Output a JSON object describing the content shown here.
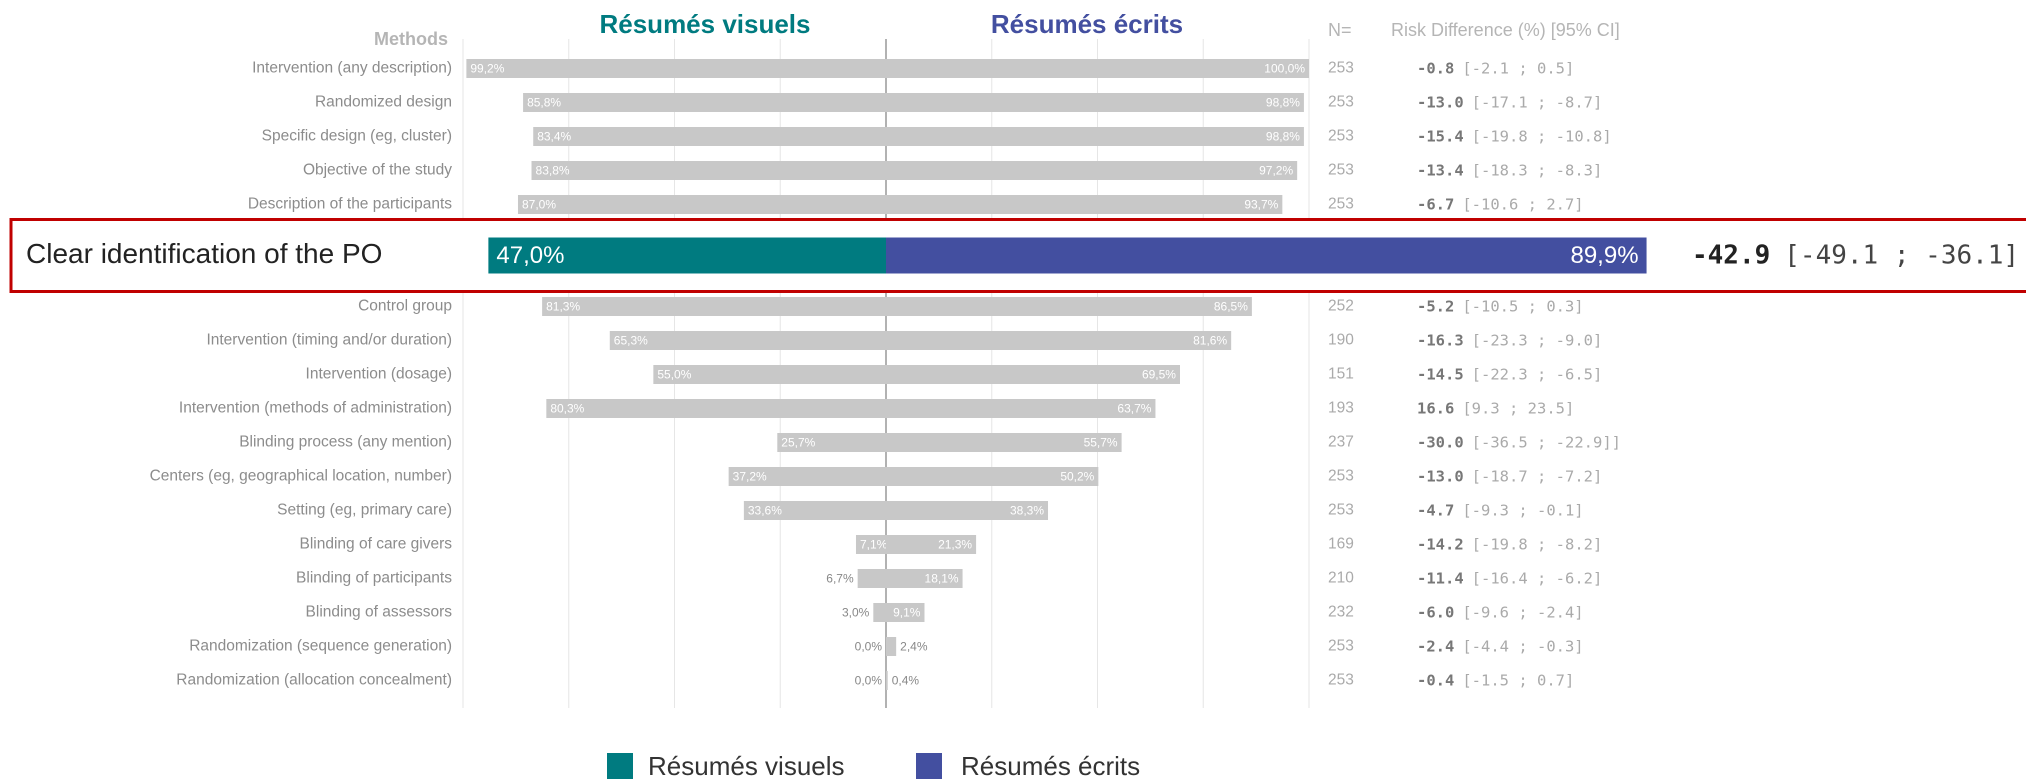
{
  "chart_data": {
    "type": "butterfly",
    "methods_header": "Methods",
    "n_header": "N=",
    "rd_header": "Risk Difference (%) [95% CI]",
    "xlim": [
      -100,
      100
    ],
    "xticks": [
      -100,
      -75,
      -50,
      -25,
      0,
      25,
      50,
      75,
      100
    ],
    "grid": true,
    "bar_color": "#c8c8c8",
    "highlight": 5,
    "categories": [
      "Intervention (any description)",
      "Randomized design",
      "Specific design (eg, cluster)",
      "Objective of the study",
      "Description of the participants",
      "Clear identification of the PO",
      "Control group",
      "Intervention (timing and/or duration)",
      "Intervention (dosage)",
      "Intervention (methods of administration)",
      "Blinding process (any mention)",
      "Centers (eg, geographical location, number)",
      "Setting (eg, primary care)",
      "Blinding of care givers",
      "Blinding of participants",
      "Blinding of assessors",
      "Randomization (sequence generation)",
      "Randomization (allocation concealment)"
    ],
    "series": [
      {
        "name": "Résumés visuels",
        "color": "#007b80",
        "values": [
          99.2,
          85.8,
          83.4,
          83.8,
          87.0,
          47.0,
          81.3,
          65.3,
          55.0,
          80.3,
          25.7,
          37.2,
          33.6,
          7.1,
          6.7,
          3.0,
          0.0,
          0.0
        ],
        "value_labels": [
          "99,2%",
          "85,8%",
          "83,4%",
          "83,8%",
          "87,0%",
          "47,0%",
          "81,3%",
          "65,3%",
          "55,0%",
          "80,3%",
          "25,7%",
          "37,2%",
          "33,6%",
          "7,1%",
          "6,7%",
          "3,0%",
          "0,0%",
          "0,0%"
        ]
      },
      {
        "name": "Résumés écrits",
        "color": "#434fa0",
        "values": [
          100.0,
          98.8,
          98.8,
          97.2,
          93.7,
          89.9,
          86.5,
          81.6,
          69.5,
          63.7,
          55.7,
          50.2,
          38.3,
          21.3,
          18.1,
          9.1,
          2.4,
          0.4
        ],
        "value_labels": [
          "100,0%",
          "98,8%",
          "98,8%",
          "97,2%",
          "93,7%",
          "89,9%",
          "86,5%",
          "81,6%",
          "69,5%",
          "63,7%",
          "55,7%",
          "50,2%",
          "38,3%",
          "21,3%",
          "18,1%",
          "9,1%",
          "2,4%",
          "0,4%"
        ]
      }
    ],
    "n": [
      253,
      253,
      253,
      253,
      253,
      null,
      252,
      190,
      151,
      193,
      237,
      253,
      253,
      169,
      210,
      232,
      253,
      253
    ],
    "rd": [
      "-0.8",
      "-13.0",
      "-15.4",
      "-13.4",
      "-6.7",
      "-42.9",
      "-5.2",
      "-16.3",
      "-14.5",
      "16.6",
      "-30.0",
      "-13.0",
      "-4.7",
      "-14.2",
      "-11.4",
      "-6.0",
      "-2.4",
      "-0.4"
    ],
    "ci": [
      "[-2.1 ; 0.5]",
      "[-17.1 ; -8.7]",
      "[-19.8 ; -10.8]",
      "[-18.3 ; -8.3]",
      "[-10.6 ; 2.7]",
      "[-49.1 ; -36.1]",
      "[-10.5 ; 0.3]",
      "[-23.3 ; -9.0]",
      "[-22.3 ; -6.5]",
      "[9.3 ; 23.5]",
      "[-36.5 ; -22.9]]",
      "[-18.7 ; -7.2]",
      "[-9.3 ; -0.1]",
      "[-19.8 ; -8.2]",
      "[-16.4 ; -6.2]",
      "[-9.6 ; -2.4]",
      "[-4.4 ; -0.3]",
      "[-1.5 ; 0.7]"
    ]
  }
}
